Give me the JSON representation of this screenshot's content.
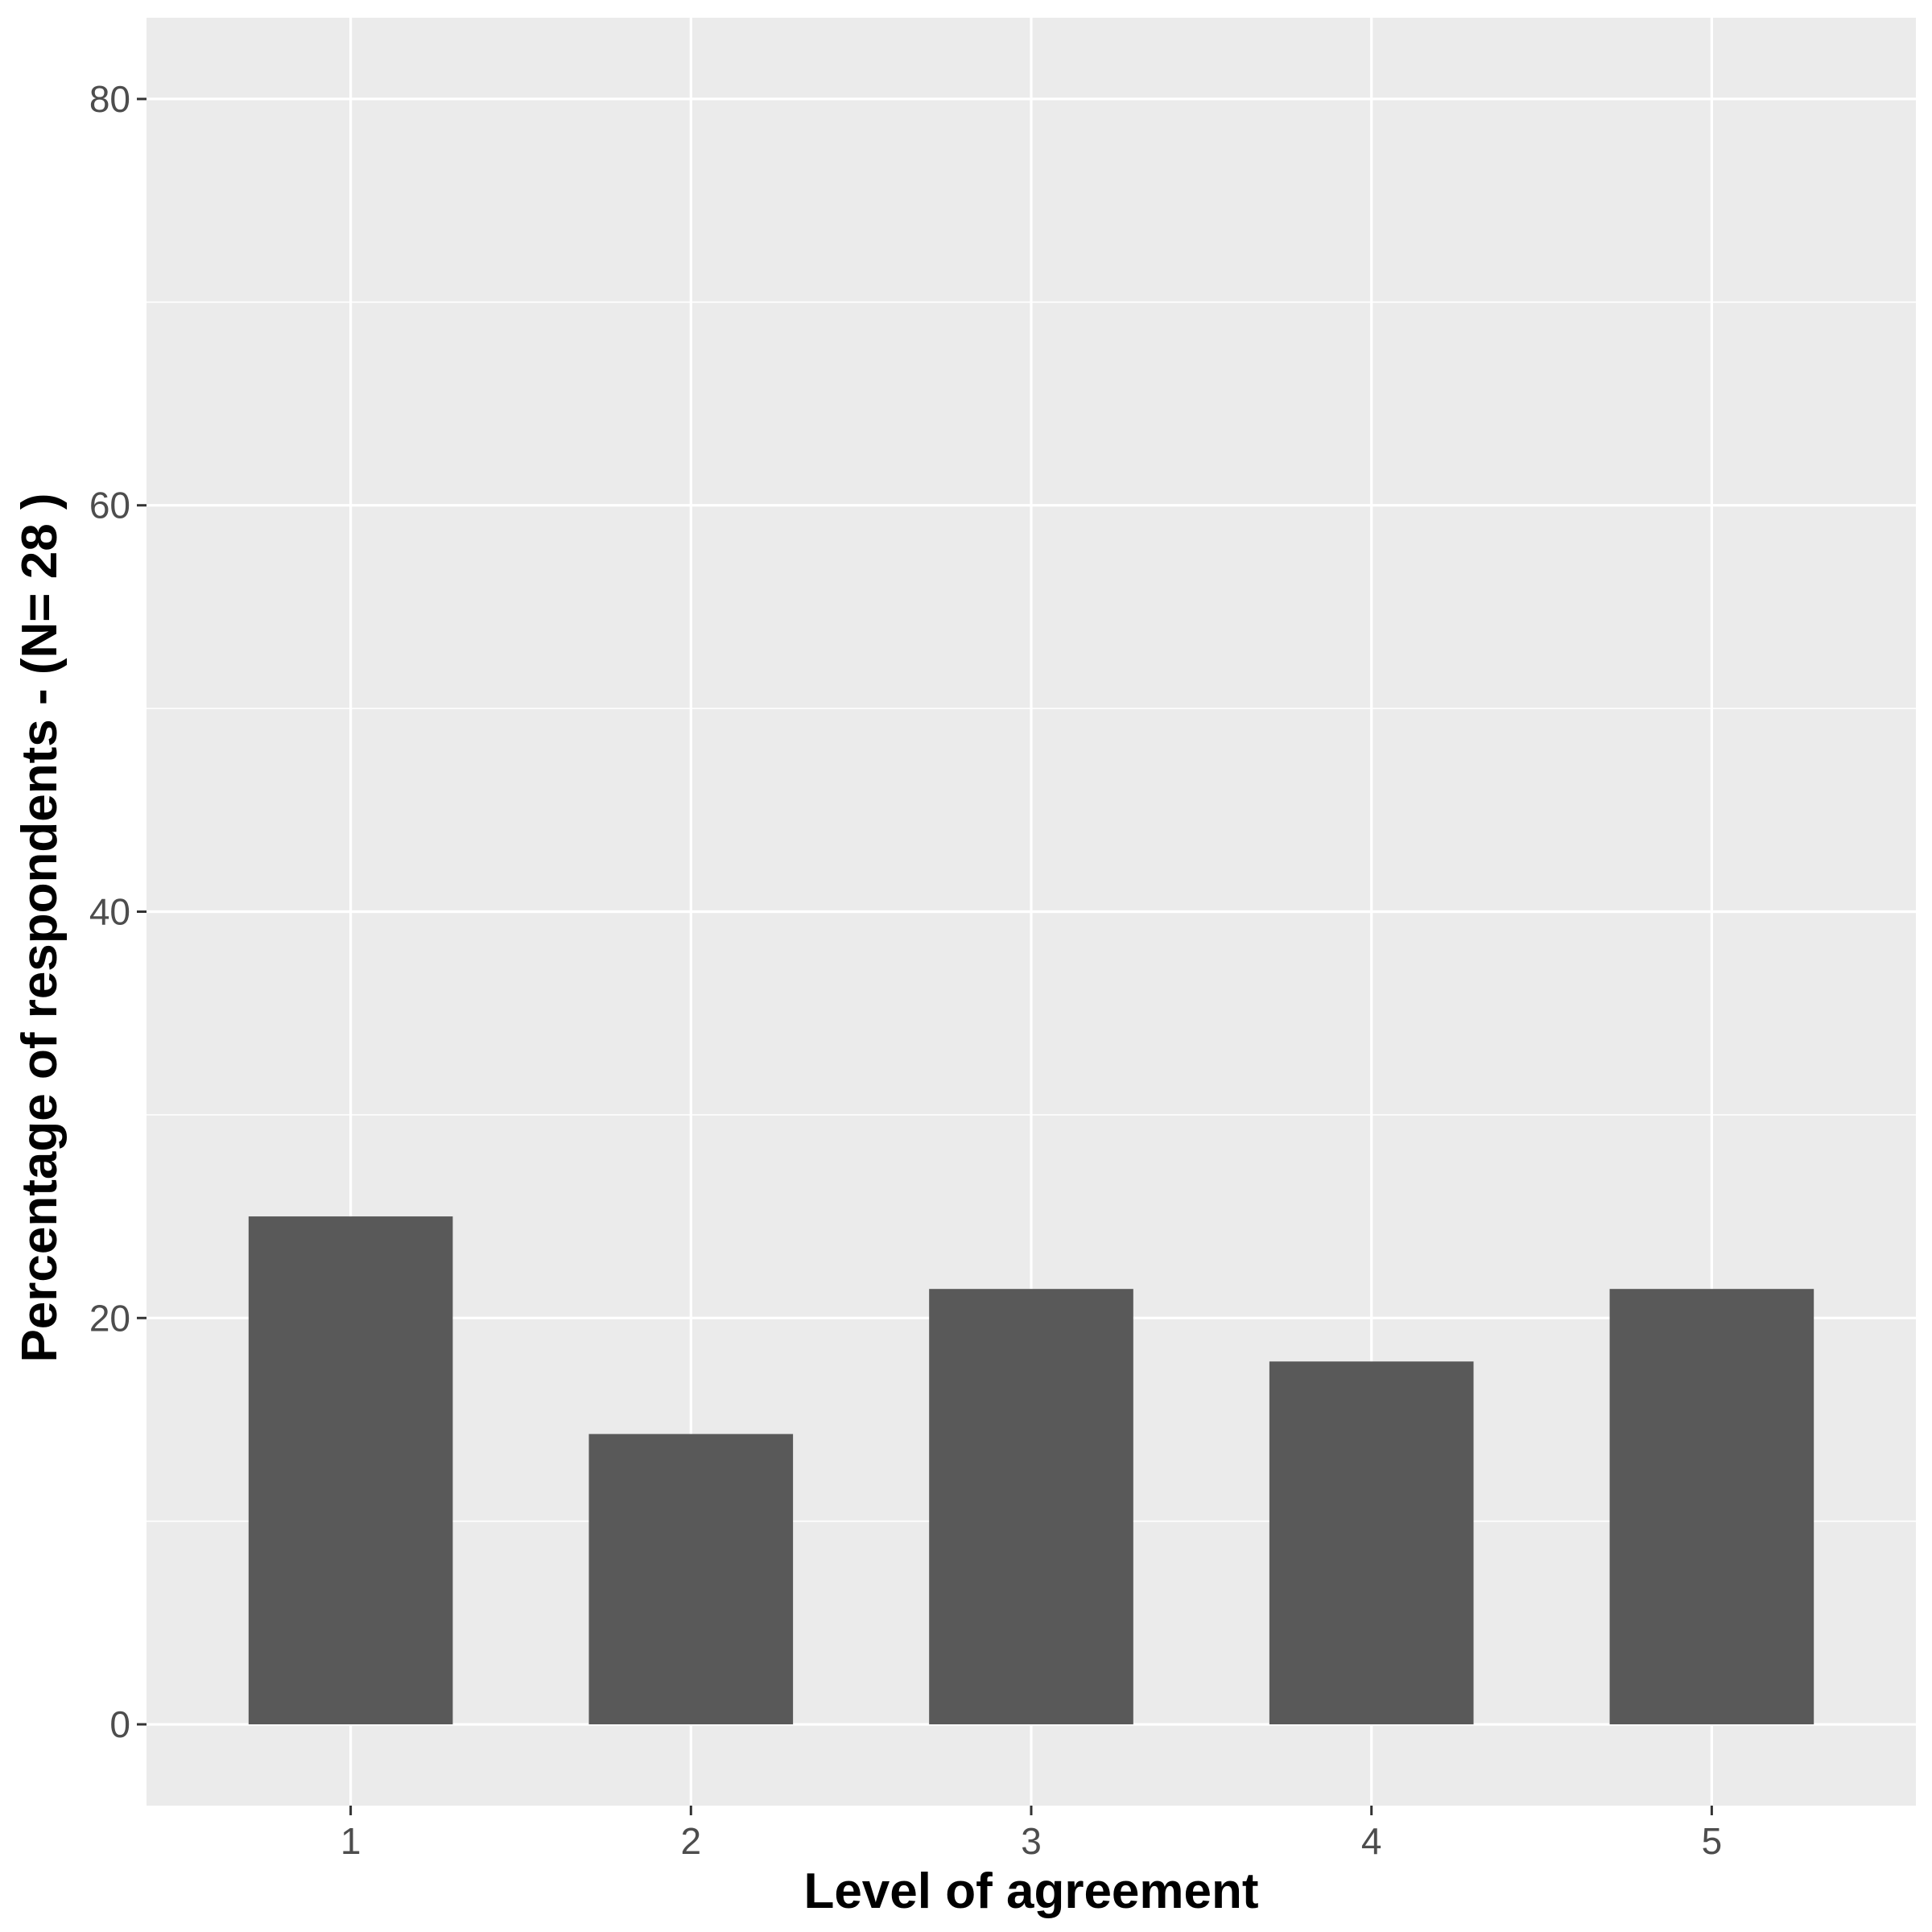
{
  "chart_data": {
    "type": "bar",
    "categories": [
      "1",
      "2",
      "3",
      "4",
      "5"
    ],
    "values": [
      25.0,
      14.29,
      21.43,
      17.86,
      21.43
    ],
    "xlabel": "Level of agreement",
    "ylabel": "Percentage of respondents - (N= 28 )",
    "ylim": [
      -4,
      84
    ],
    "yticks": [
      0,
      20,
      40,
      60,
      80
    ],
    "grid": true,
    "legend": "none",
    "colors": {
      "bar": "#595959",
      "panel": "#ebebeb",
      "grid": "#ffffff",
      "tick_text": "#4d4d4d",
      "title_text": "#000000"
    }
  }
}
